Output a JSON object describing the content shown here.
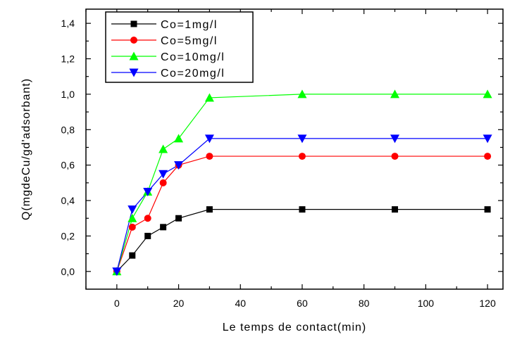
{
  "chart_data": {
    "type": "line",
    "title": "",
    "xlabel": "Le temps de contact(min)",
    "ylabel": "Q(mgdeCu/gd'adsorbant)",
    "xlim": [
      -10,
      125
    ],
    "ylim": [
      -0.1,
      1.48
    ],
    "xticks": [
      0,
      20,
      40,
      60,
      80,
      100,
      120
    ],
    "yticks": [
      0.0,
      0.2,
      0.4,
      0.6,
      0.8,
      1.0,
      1.2,
      1.4
    ],
    "ytick_labels": [
      "0,0",
      "0,2",
      "0,4",
      "0,6",
      "0,8",
      "1,0",
      "1,2",
      "1,4"
    ],
    "grid": false,
    "legend_position": "top-left",
    "series": [
      {
        "name": "Co=1mg/l",
        "color": "#000000",
        "marker": "square",
        "x": [
          0,
          5,
          10,
          15,
          20,
          30,
          60,
          90,
          120
        ],
        "y": [
          0.0,
          0.09,
          0.2,
          0.25,
          0.3,
          0.35,
          0.35,
          0.35,
          0.35
        ]
      },
      {
        "name": "Co=5mg/l",
        "color": "#ff0000",
        "marker": "circle",
        "x": [
          0,
          5,
          10,
          15,
          20,
          30,
          60,
          90,
          120
        ],
        "y": [
          0.0,
          0.25,
          0.3,
          0.5,
          0.6,
          0.65,
          0.65,
          0.65,
          0.65
        ]
      },
      {
        "name": "Co=10mg/l",
        "color": "#00ff00",
        "marker": "triangle-up",
        "x": [
          0,
          5,
          10,
          15,
          20,
          30,
          60,
          90,
          120
        ],
        "y": [
          0.0,
          0.3,
          0.45,
          0.69,
          0.75,
          0.98,
          1.0,
          1.0,
          1.0
        ]
      },
      {
        "name": "Co=20mg/l",
        "color": "#0000ff",
        "marker": "triangle-down",
        "x": [
          0,
          5,
          10,
          15,
          20,
          30,
          60,
          90,
          120
        ],
        "y": [
          0.0,
          0.35,
          0.45,
          0.55,
          0.6,
          0.75,
          0.75,
          0.75,
          0.75
        ]
      }
    ]
  }
}
